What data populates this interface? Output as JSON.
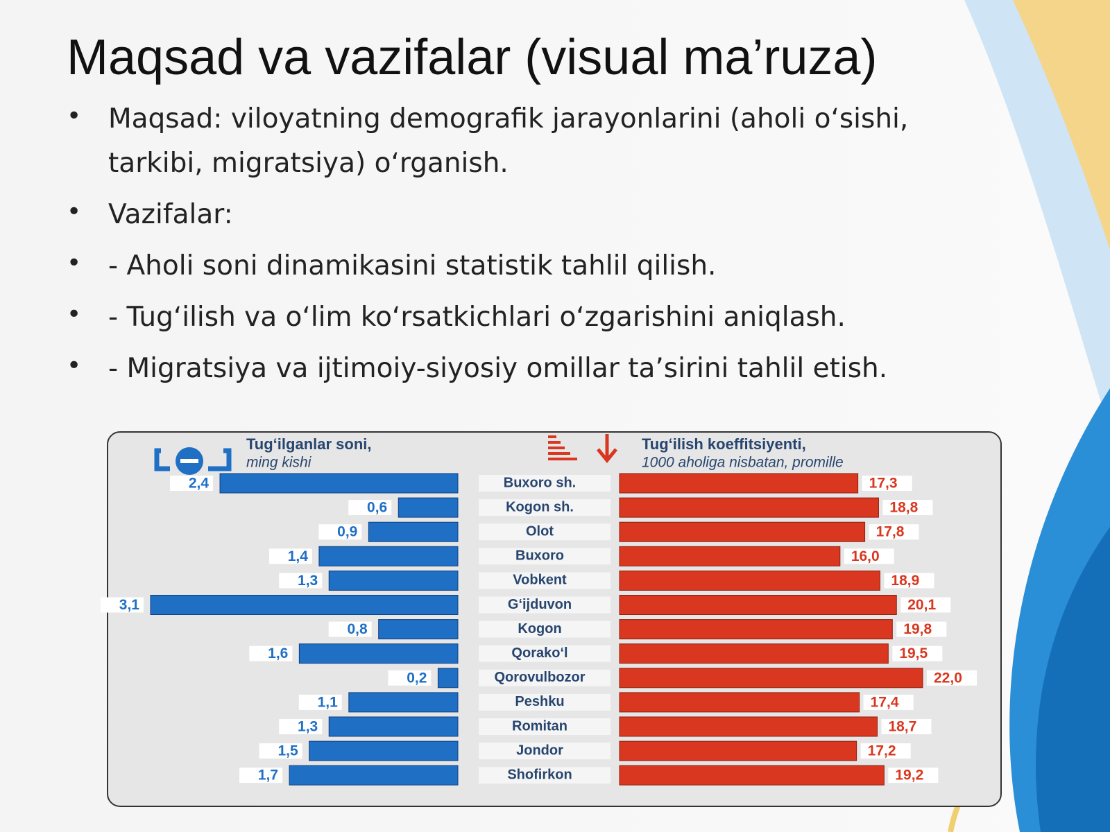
{
  "title": "Maqsad va vazifalar (visual ma’ruza)",
  "bullets": [
    "Maqsad: viloyatning demografik jarayonlarini (aholi o‘sishi, tarkibi, migratsiya) o‘rganish.",
    "Vazifalar:",
    "- Aholi soni dinamikasini statistik tahlil qilish.",
    "- Tug‘ilish va o‘lim ko‘rsatkichlari o‘zgarishini aniqlash.",
    "- Migratsiya va ijtimoiy-siyosiy omillar ta’sirini tahlil etish."
  ],
  "chart_data": {
    "type": "butterfly",
    "categories": [
      "Buxoro sh.",
      "Kogon sh.",
      "Olot",
      "Buxoro",
      "Vobkent",
      "G‘ijduvon",
      "Kogon",
      "Qorako‘l",
      "Qorovulbozor",
      "Peshku",
      "Romitan",
      "Jondor",
      "Shofirkon"
    ],
    "series": [
      {
        "name": "Tug‘ilganlar soni,",
        "unit": "ming kishi",
        "color": "#1f6fc5",
        "values": [
          2.4,
          0.6,
          0.9,
          1.4,
          1.3,
          3.1,
          0.8,
          1.6,
          0.2,
          1.1,
          1.3,
          1.5,
          1.7
        ],
        "value_labels": [
          "2,4",
          "0,6",
          "0,9",
          "1,4",
          "1,3",
          "3,1",
          "0,8",
          "1,6",
          "0,2",
          "1,1",
          "1,3",
          "1,5",
          "1,7"
        ]
      },
      {
        "name": "Tug‘ilish koeffitsiyenti,",
        "unit": "1000 aholiga nisbatan, promille",
        "color": "#d9371f",
        "values": [
          17.3,
          18.8,
          17.8,
          16.0,
          18.9,
          20.1,
          19.8,
          19.5,
          22.0,
          17.4,
          18.7,
          17.2,
          19.2
        ],
        "value_labels": [
          "17,3",
          "18,8",
          "17,8",
          "16,0",
          "18,9",
          "20,1",
          "19,8",
          "19,5",
          "22,0",
          "17,4",
          "18,7",
          "17,2",
          "19,2"
        ]
      }
    ]
  }
}
